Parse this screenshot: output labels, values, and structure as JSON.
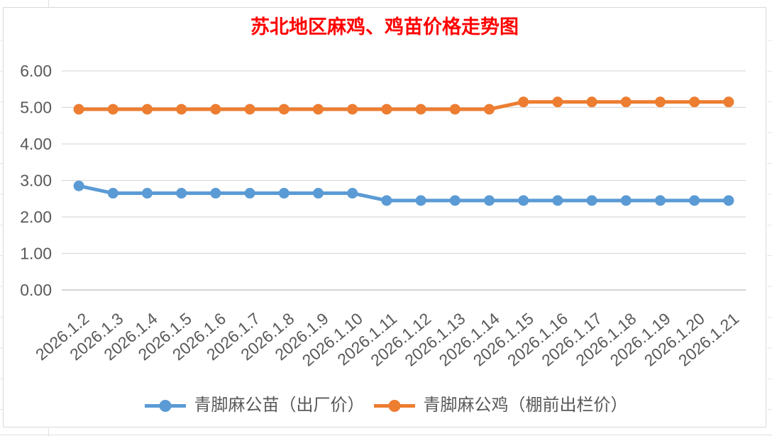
{
  "chart_data": {
    "type": "line",
    "title": "苏北地区麻鸡、鸡苗价格走势图",
    "title_color": "#FF0000",
    "categories": [
      "2026.1.2",
      "2026.1.3",
      "2026.1.4",
      "2026.1.5",
      "2026.1.6",
      "2026.1.7",
      "2026.1.8",
      "2026.1.9",
      "2026.1.10",
      "2026.1.11",
      "2026.1.12",
      "2026.1.13",
      "2026.1.14",
      "2026.1.15",
      "2026.1.16",
      "2026.1.17",
      "2026.1.18",
      "2026.1.19",
      "2026.1.20",
      "2026.1.21"
    ],
    "series": [
      {
        "name": "青脚麻公苗（出厂价）",
        "color": "#5B9BD5",
        "marker": "circle",
        "values": [
          2.85,
          2.65,
          2.65,
          2.65,
          2.65,
          2.65,
          2.65,
          2.65,
          2.65,
          2.45,
          2.45,
          2.45,
          2.45,
          2.45,
          2.45,
          2.45,
          2.45,
          2.45,
          2.45,
          2.45
        ]
      },
      {
        "name": "青脚麻公鸡（棚前出栏价）",
        "color": "#ED7D31",
        "marker": "circle",
        "values": [
          4.95,
          4.95,
          4.95,
          4.95,
          4.95,
          4.95,
          4.95,
          4.95,
          4.95,
          4.95,
          4.95,
          4.95,
          4.95,
          5.15,
          5.15,
          5.15,
          5.15,
          5.15,
          5.15,
          5.15
        ]
      }
    ],
    "ylim": [
      0,
      6
    ],
    "y_tick_labels": [
      "0.00",
      "1.00",
      "2.00",
      "3.00",
      "4.00",
      "5.00",
      "6.00"
    ],
    "xlabel": "",
    "ylabel": "",
    "grid": "horizontal-only",
    "legend_position": "bottom",
    "axis_label_color": "#595959",
    "gridline_color": "#D9D9D9",
    "x_label_rotation_deg": -40
  }
}
